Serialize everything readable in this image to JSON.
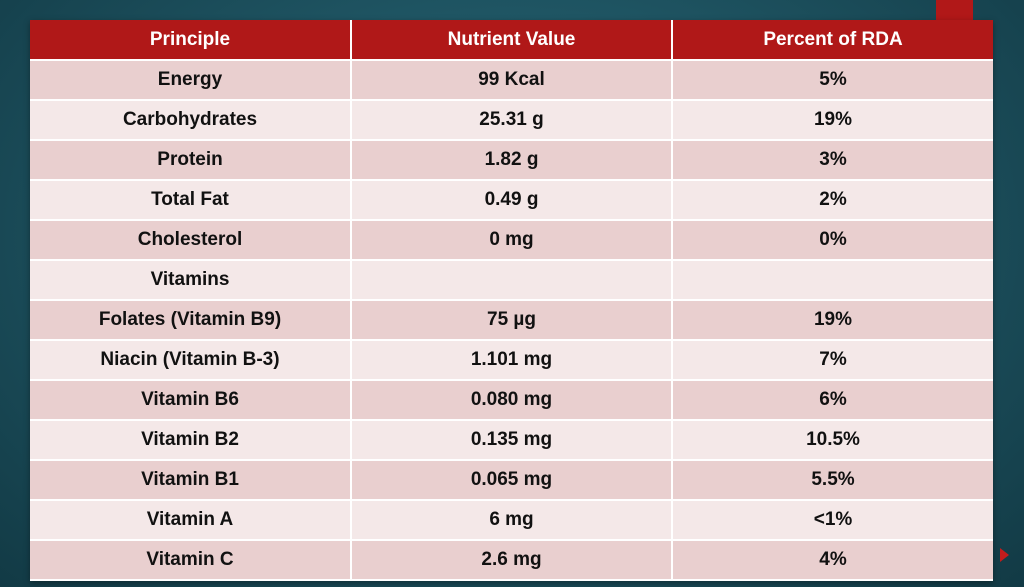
{
  "table": {
    "headers": [
      "Principle",
      "Nutrient Value",
      "Percent of RDA"
    ],
    "rows": [
      [
        "Energy",
        "99 Kcal",
        "5%"
      ],
      [
        "Carbohydrates",
        "25.31 g",
        "19%"
      ],
      [
        "Protein",
        "1.82 g",
        "3%"
      ],
      [
        "Total Fat",
        "0.49 g",
        "2%"
      ],
      [
        "Cholesterol",
        "0 mg",
        "0%"
      ],
      [
        "Vitamins",
        "",
        ""
      ],
      [
        "Folates (Vitamin B9)",
        "75 µg",
        "19%"
      ],
      [
        "Niacin (Vitamin B-3)",
        "1.101 mg",
        "7%"
      ],
      [
        "Vitamin B6",
        "0.080 mg",
        "6%"
      ],
      [
        "Vitamin B2",
        "0.135 mg",
        "10.5%"
      ],
      [
        "Vitamin B1",
        "0.065 mg",
        "5.5%"
      ],
      [
        "Vitamin A",
        "6 mg",
        "<1%"
      ],
      [
        "Vitamin C",
        "2.6 mg",
        "4%"
      ]
    ]
  },
  "colors": {
    "header_bg": "#b01818",
    "row_odd": "#e9cfcf",
    "row_even": "#f4e8e8",
    "background": "#1f5563",
    "accent": "#b11818"
  }
}
